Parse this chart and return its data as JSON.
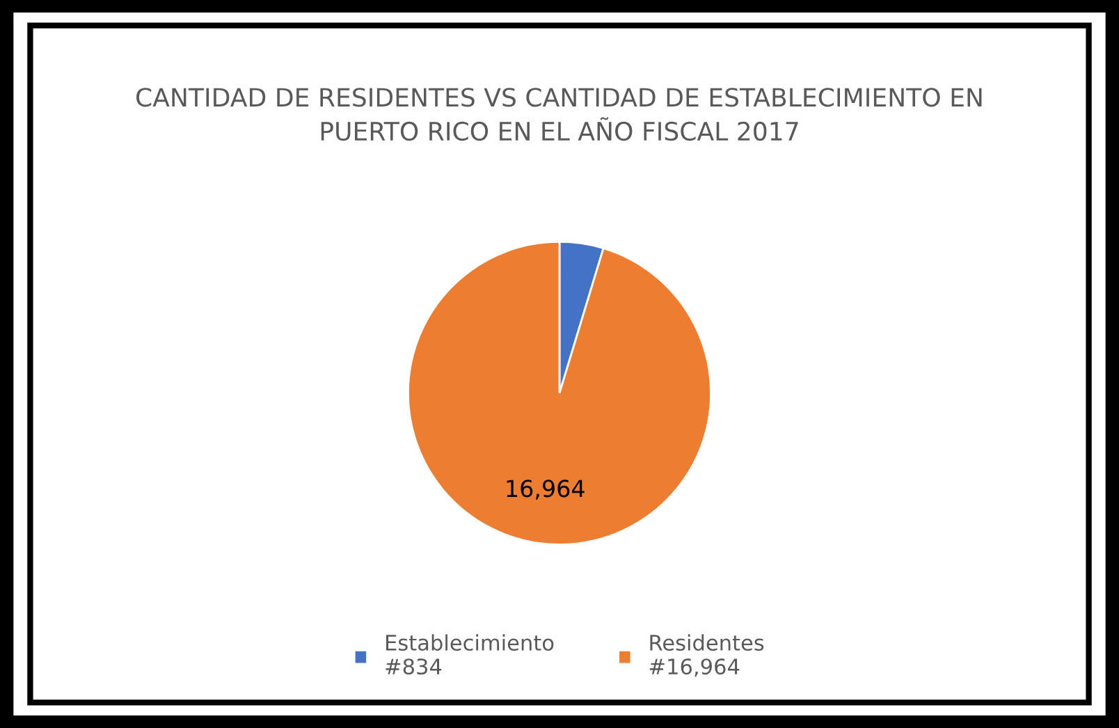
{
  "chart_data": {
    "type": "pie",
    "title": "CANTIDAD DE RESIDENTES VS CANTIDAD DE ESTABLECIMIENTO EN PUERTO RICO EN EL AÑO FISCAL 2017",
    "categories": [
      "Establecimiento\n#834",
      "Residentes\n#16,964"
    ],
    "values": [
      834,
      16964
    ],
    "colors": [
      "#4472c4",
      "#ed7d31"
    ],
    "value_labels": [
      null,
      "16,964"
    ],
    "legend": "bottom"
  }
}
